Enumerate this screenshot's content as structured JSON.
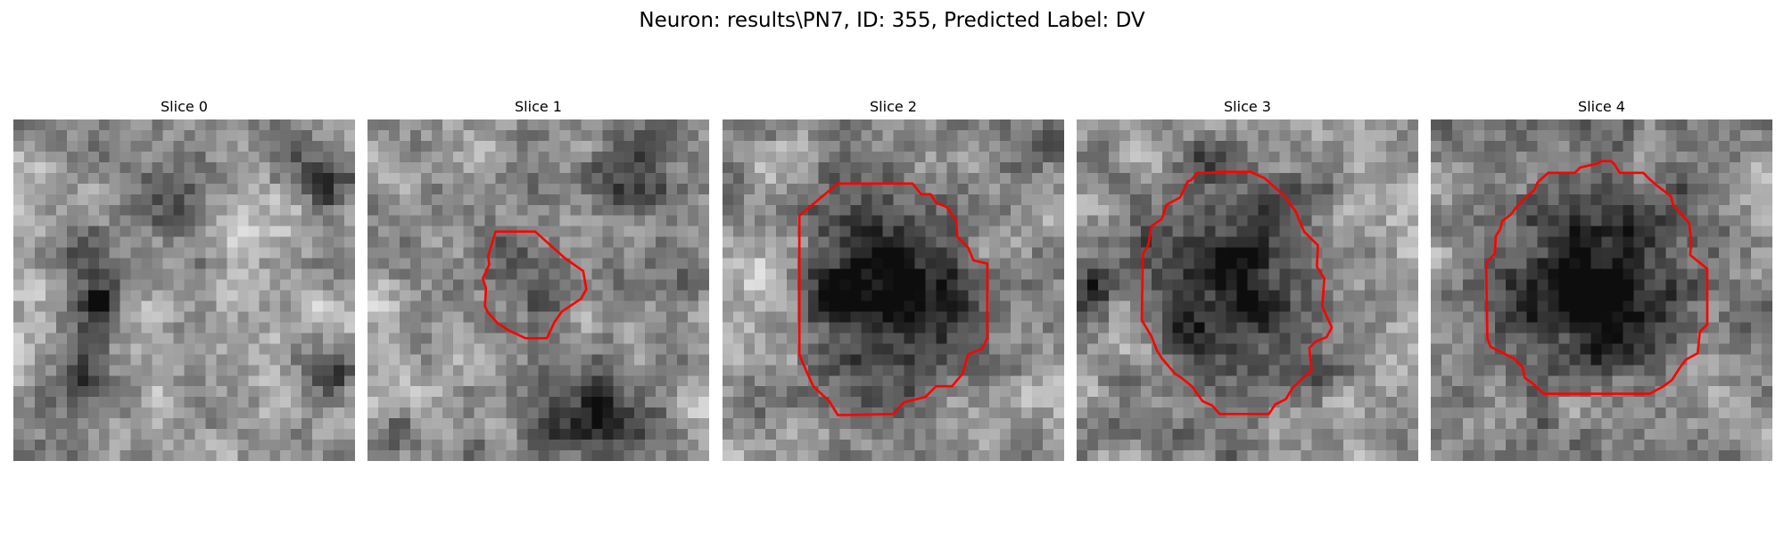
{
  "figure": {
    "title": "Neuron: results\\PN7, ID: 355, Predicted Label: DV"
  },
  "panels": [
    {
      "title": "Slice 0",
      "has_contour": false
    },
    {
      "title": "Slice 1",
      "has_contour": true
    },
    {
      "title": "Slice 2",
      "has_contour": true
    },
    {
      "title": "Slice 3",
      "has_contour": true
    },
    {
      "title": "Slice 4",
      "has_contour": true
    }
  ],
  "colors": {
    "contour": "#ff0000",
    "background": "#ffffff"
  }
}
